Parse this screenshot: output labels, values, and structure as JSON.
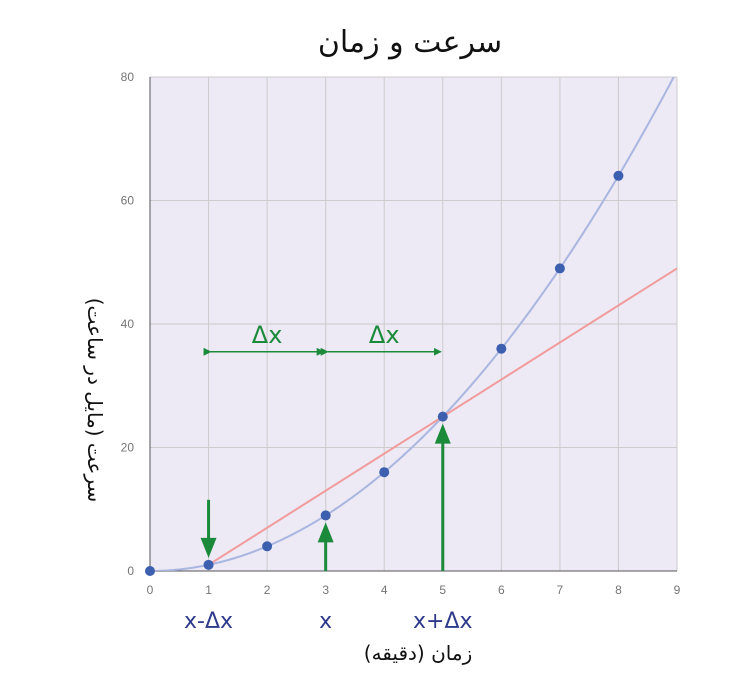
{
  "chart_data": {
    "type": "scatter",
    "title": "سرعت و زمان",
    "xlabel": "زمان (دقیقه)",
    "ylabel": "سرعت (مایل در ساعت)",
    "xlim": [
      0,
      9
    ],
    "ylim": [
      0,
      80
    ],
    "xticks": [
      "0",
      "1",
      "2",
      "3",
      "4",
      "5",
      "6",
      "7",
      "8",
      "9"
    ],
    "yticks": [
      "0",
      "20",
      "40",
      "60",
      "80"
    ],
    "grid": true,
    "series": [
      {
        "type": "scatter",
        "x": [
          0,
          1,
          2,
          3,
          4,
          5,
          6,
          7,
          8
        ],
        "y": [
          0,
          1,
          4,
          9,
          16,
          25,
          36,
          49,
          64
        ]
      },
      {
        "type": "line",
        "x": [
          0,
          9
        ],
        "y": [
          0,
          81
        ]
      },
      {
        "type": "line",
        "x": [
          1,
          9
        ],
        "y": [
          1,
          49
        ]
      }
    ],
    "annotations": {
      "x_labels": [
        {
          "text": "x-Δx",
          "x": 1
        },
        {
          "text": "x",
          "x": 3
        },
        {
          "text": "x+Δx",
          "x": 5
        }
      ],
      "delta_labels": [
        {
          "text": "Δx",
          "from": 1,
          "to": 3,
          "y": 35.5
        },
        {
          "text": "Δx",
          "from": 3,
          "to": 5,
          "y": 35.5
        }
      ],
      "arrows": [
        {
          "x": 1,
          "direction": "down"
        },
        {
          "x": 3,
          "direction": "up"
        },
        {
          "x": 5,
          "direction": "up"
        }
      ]
    },
    "colors": {
      "background": "#ede9f5",
      "grid": "#cccccc",
      "curve": "#a9b6e0",
      "tangent": "#f19c9c",
      "points": "#3d5fb0",
      "arrows": "#1b8a3a",
      "x_labels": "#2e3a8c"
    }
  }
}
